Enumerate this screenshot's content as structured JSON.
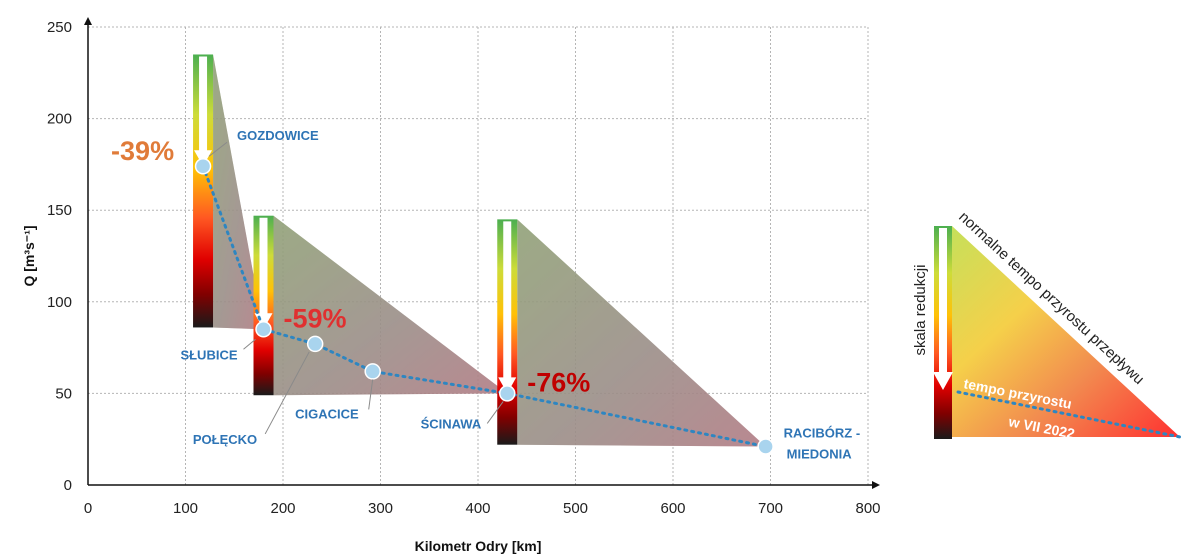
{
  "chart_data": {
    "type": "line",
    "xlabel": "Kilometr Odry [km]",
    "ylabel": "Q [m³s⁻¹]",
    "xlim": [
      0,
      800
    ],
    "ylim": [
      0,
      250
    ],
    "xticks": [
      0,
      100,
      200,
      300,
      400,
      500,
      600,
      700,
      800
    ],
    "yticks": [
      0,
      50,
      100,
      150,
      200,
      250
    ],
    "grid": true,
    "series": [
      {
        "points": [
          {
            "x": 118,
            "y": 174,
            "label": "GOZDOWICE"
          },
          {
            "x": 180,
            "y": 85,
            "label": "SŁUBICE"
          },
          {
            "x": 233,
            "y": 77,
            "label": "POŁĘCKO"
          },
          {
            "x": 292,
            "y": 62,
            "label": "CIGACICE"
          },
          {
            "x": 430,
            "y": 50,
            "label": "ŚCINAWA"
          },
          {
            "x": 695,
            "y": 21,
            "label": "RACIBÓRZ - MIEDONIA"
          }
        ]
      }
    ],
    "reduction_markers": [
      {
        "x": 118,
        "top": 235,
        "bottom": 86,
        "arrow_to": 174,
        "label": "-39%",
        "color": "#e07b39"
      },
      {
        "x": 180,
        "top": 147,
        "bottom": 49,
        "arrow_to": 85,
        "label": "-59%",
        "color": "#e03030"
      },
      {
        "x": 430,
        "top": 145,
        "bottom": 22,
        "arrow_to": 50,
        "label": "-76%",
        "color": "#c00000"
      }
    ]
  },
  "legend": {
    "scale_label": "skala redukcji",
    "normal_rate_label": "normalne tempo przyrostu przepływu",
    "rate_2022_line1": "tempo przyrostu",
    "rate_2022_line2": "w VII 2022"
  },
  "colors": {
    "line": "#2e86c1",
    "station_label": "#2e74b5",
    "point_fill": "#a9d4ee"
  }
}
